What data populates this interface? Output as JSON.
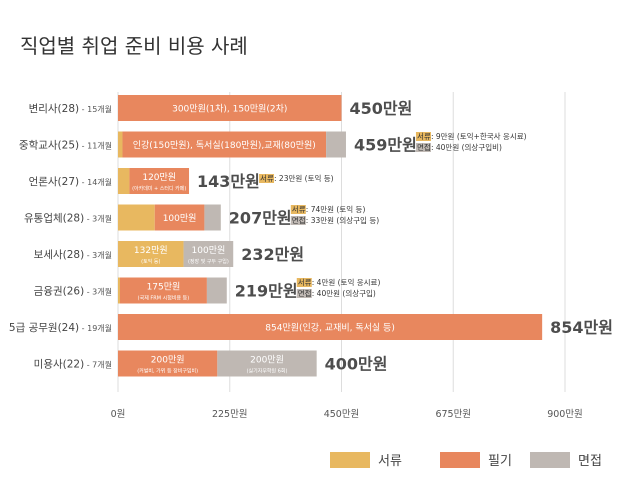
{
  "chart_data": {
    "type": "bar",
    "orientation": "horizontal",
    "stacked": true,
    "title": "직업별 취업 준비 비용 사례",
    "unit": "만원",
    "xlim": [
      0,
      900
    ],
    "x_ticks": [
      0,
      225,
      450,
      675,
      900
    ],
    "x_tick_labels": [
      "0원",
      "225만원",
      "450만원",
      "675만원",
      "900만원"
    ],
    "grid": true,
    "legend_position": "bottom-right",
    "series_names": [
      "서류",
      "필기",
      "면접"
    ],
    "colors": {
      "서류": "#E8B860",
      "필기": "#E8875E",
      "면접": "#BFB8B3"
    },
    "categories": [
      {
        "name": "변리사(28)",
        "sub": " - 15개월",
        "total": "450만원",
        "segments": [
          {
            "series": "필기",
            "value": 450,
            "label": "300만원(1차), 150만원(2차)"
          }
        ]
      },
      {
        "name": "중학교사(25)",
        "sub": " - 11개월",
        "total": "459만원",
        "segments": [
          {
            "series": "서류",
            "value": 9
          },
          {
            "series": "필기",
            "value": 410,
            "label": "인강(150만원), 독서실(180만원),교재(80만원)"
          },
          {
            "series": "면접",
            "value": 40
          }
        ],
        "notes": [
          {
            "tag": "서류",
            "text": " : 9만원 (토익+한국사 응시료)"
          },
          {
            "tag": "면접",
            "text": " : 40만원 (의상구입비)"
          }
        ]
      },
      {
        "name": "언론사(27)",
        "sub": " - 14개월",
        "total": "143만원",
        "segments": [
          {
            "series": "서류",
            "value": 23
          },
          {
            "series": "필기",
            "value": 120,
            "label": "120만원",
            "sublabel": "(아카데미 + 스터디 카페)"
          }
        ],
        "notes": [
          {
            "tag": "서류",
            "text": " : 23만원 (토익 등)"
          }
        ]
      },
      {
        "name": "유통업체(28)",
        "sub": " - 3개월",
        "total": "207만원",
        "segments": [
          {
            "series": "서류",
            "value": 74
          },
          {
            "series": "필기",
            "value": 100,
            "label": "100만원"
          },
          {
            "series": "면접",
            "value": 33
          }
        ],
        "notes": [
          {
            "tag": "서류",
            "text": " : 74만원 (토익 등)"
          },
          {
            "tag": "면접",
            "text": " : 33만원 (의상구입 등)"
          }
        ]
      },
      {
        "name": "보세사(28)",
        "sub": " - 3개월",
        "total": "232만원",
        "segments": [
          {
            "series": "서류",
            "value": 132,
            "label": "132만원",
            "sublabel": "(토익 등)"
          },
          {
            "series": "면접",
            "value": 100,
            "label": "100만원",
            "sublabel": "(정장 및 구두 구입)"
          }
        ]
      },
      {
        "name": "금융권(26)",
        "sub": " - 3개월",
        "total": "219만원",
        "segments": [
          {
            "series": "서류",
            "value": 4
          },
          {
            "series": "필기",
            "value": 175,
            "label": "175만원",
            "sublabel": "(국제 FRM 시험비용 등)"
          },
          {
            "series": "면접",
            "value": 40
          }
        ],
        "notes": [
          {
            "tag": "서류",
            "text": " : 4만원 (토익 응시료)"
          },
          {
            "tag": "면접",
            "text": " : 40만원 (의상구입)"
          }
        ]
      },
      {
        "name": "5급 공무원(24)",
        "sub": " - 19개월",
        "total": "854만원",
        "segments": [
          {
            "series": "필기",
            "value": 854,
            "label": "854만원(인강, 교재비, 독서실 등)"
          }
        ]
      },
      {
        "name": "미용사(22)",
        "sub": " - 7개월",
        "total": "400만원",
        "segments": [
          {
            "series": "필기",
            "value": 200,
            "label": "200만원",
            "sublabel": "(커벌비, 가위 등 장비구입비)"
          },
          {
            "series": "면접",
            "value": 200,
            "label": "200만원",
            "sublabel": "(실기자무학원 6회)"
          }
        ]
      }
    ]
  }
}
